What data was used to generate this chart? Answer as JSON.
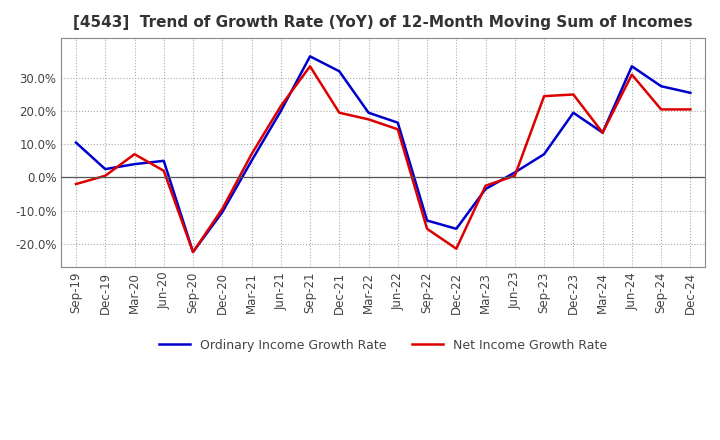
{
  "title": "[4543]  Trend of Growth Rate (YoY) of 12-Month Moving Sum of Incomes",
  "ylim": [
    -0.27,
    0.42
  ],
  "yticks": [
    -0.2,
    -0.1,
    0.0,
    0.1,
    0.2,
    0.3
  ],
  "background_color": "#ffffff",
  "grid_color": "#aaaaaa",
  "ordinary_color": "#0000cc",
  "net_color": "#dd0000",
  "x_labels": [
    "Sep-19",
    "Dec-19",
    "Mar-20",
    "Jun-20",
    "Sep-20",
    "Dec-20",
    "Mar-21",
    "Jun-21",
    "Sep-21",
    "Dec-21",
    "Mar-22",
    "Jun-22",
    "Sep-22",
    "Dec-22",
    "Mar-23",
    "Jun-23",
    "Sep-23",
    "Dec-23",
    "Mar-24",
    "Jun-24",
    "Sep-24",
    "Dec-24"
  ],
  "ordinary_income": [
    0.105,
    0.025,
    0.04,
    0.05,
    -0.225,
    -0.105,
    0.05,
    0.2,
    0.365,
    0.32,
    0.195,
    0.165,
    -0.13,
    -0.155,
    -0.035,
    0.015,
    0.07,
    0.195,
    0.135,
    0.335,
    0.275,
    0.255
  ],
  "net_income": [
    -0.02,
    0.005,
    0.07,
    0.02,
    -0.225,
    -0.095,
    0.07,
    0.215,
    0.335,
    0.195,
    0.175,
    0.145,
    -0.155,
    -0.215,
    -0.025,
    0.005,
    0.245,
    0.25,
    0.135,
    0.31,
    0.205,
    0.205
  ],
  "legend_ordinary": "Ordinary Income Growth Rate",
  "legend_net": "Net Income Growth Rate",
  "title_fontsize": 11,
  "tick_fontsize": 8.5,
  "legend_fontsize": 9
}
